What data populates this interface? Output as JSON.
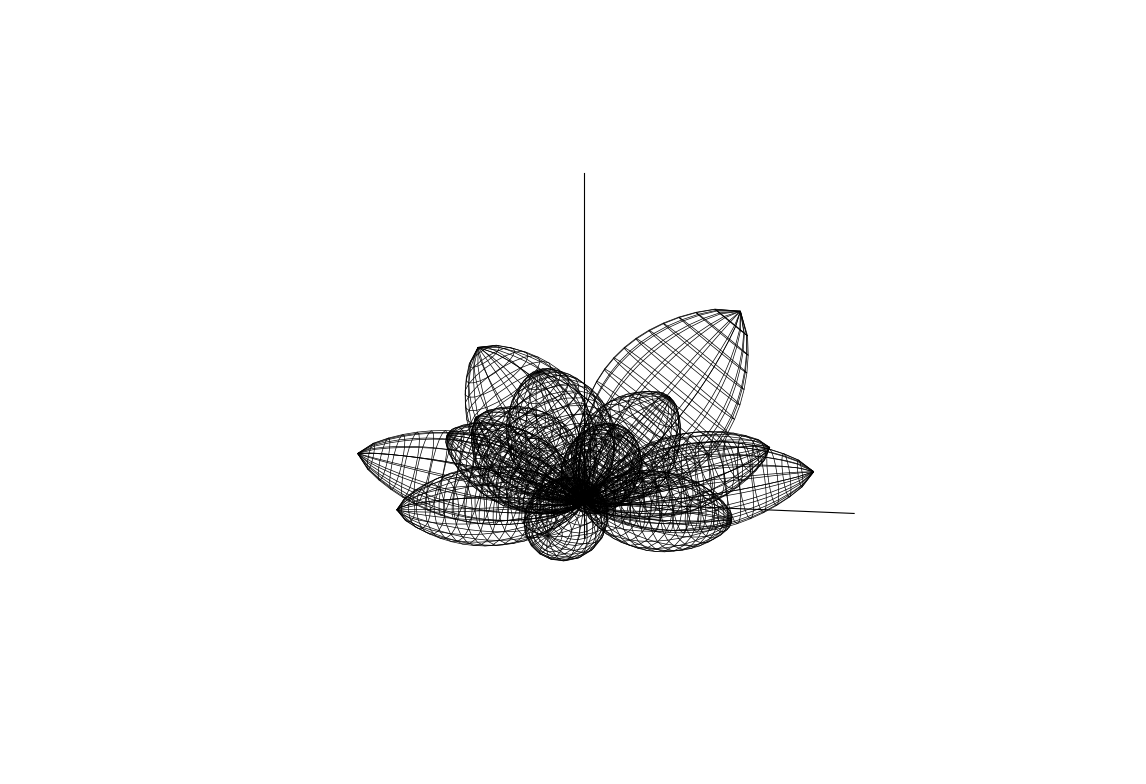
{
  "chart_data": {
    "type": "wireframe_3d",
    "tick_labels": false,
    "color": "#000000",
    "lobes": [
      {
        "azimuth": 20,
        "elevation": 50,
        "length": 1.0,
        "width": 0.28
      },
      {
        "azimuth": 150,
        "elevation": 45,
        "length": 0.8,
        "width": 0.24
      },
      {
        "azimuth": 120,
        "elevation": 38,
        "length": 0.7,
        "width": 0.22
      },
      {
        "azimuth": 60,
        "elevation": 32,
        "length": 0.65,
        "width": 0.2
      },
      {
        "azimuth": 210,
        "elevation": 40,
        "length": 0.6,
        "width": 0.2
      },
      {
        "azimuth": 0,
        "elevation": 10,
        "length": 0.95,
        "width": 0.18
      },
      {
        "azimuth": 40,
        "elevation": 8,
        "length": 0.9,
        "width": 0.16
      },
      {
        "azimuth": 90,
        "elevation": 6,
        "length": 0.85,
        "width": 0.16
      },
      {
        "azimuth": 140,
        "elevation": 8,
        "length": 0.9,
        "width": 0.16
      },
      {
        "azimuth": 180,
        "elevation": 10,
        "length": 0.95,
        "width": 0.18
      },
      {
        "azimuth": 225,
        "elevation": 6,
        "length": 0.9,
        "width": 0.16
      },
      {
        "azimuth": 270,
        "elevation": 4,
        "length": 0.8,
        "width": 0.16
      },
      {
        "azimuth": 320,
        "elevation": 6,
        "length": 0.9,
        "width": 0.16
      }
    ]
  }
}
